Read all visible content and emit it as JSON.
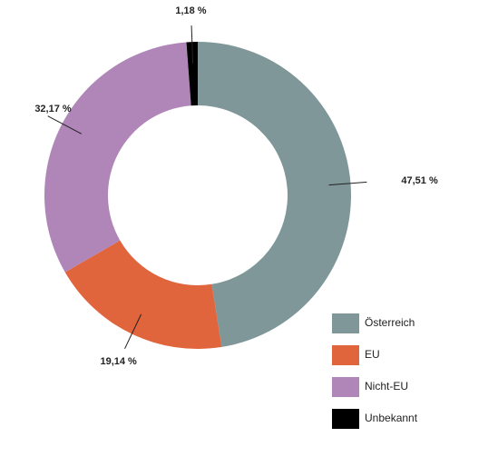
{
  "chart_data": {
    "type": "donut",
    "categories": [
      "Österreich",
      "EU",
      "Nicht-EU",
      "Unbekannt"
    ],
    "values": [
      47.51,
      19.14,
      32.17,
      1.18
    ],
    "value_labels": [
      "47,51 %",
      "19,14 %",
      "32,17 %",
      "1,18 %"
    ],
    "colors": [
      "#7f9799",
      "#e0643c",
      "#b086b8",
      "#000000"
    ],
    "legend": "bottom-right"
  }
}
